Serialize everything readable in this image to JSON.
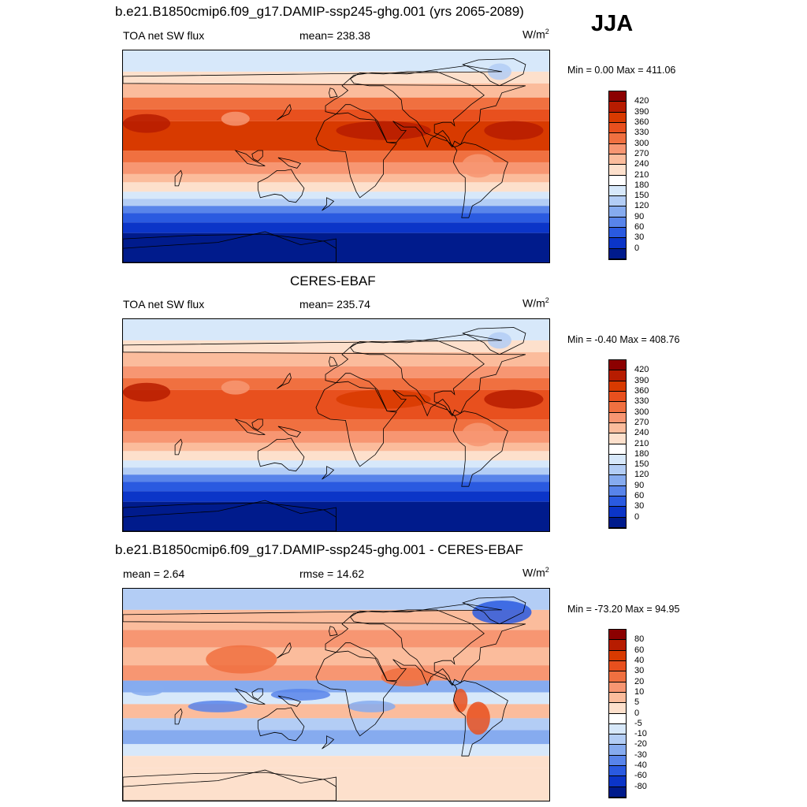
{
  "season": "JJA",
  "panels": [
    {
      "id": "model",
      "title": "b.e21.B1850cmip6.f09_g17.DAMIP-ssp245-ghg.001 (yrs 2065-2089)",
      "left_label": "TOA net SW flux",
      "center_label": "mean= 238.38",
      "units_base": "W/m",
      "units_sup": "2",
      "minmax": "Min =   0.00 Max = 411.06",
      "colorbar_labels": [
        "420",
        "390",
        "360",
        "330",
        "300",
        "270",
        "240",
        "210",
        "180",
        "150",
        "120",
        "90",
        "60",
        "30",
        "0"
      ]
    },
    {
      "id": "obs",
      "title": "CERES-EBAF",
      "left_label": "TOA net SW flux",
      "center_label": "mean= 235.74",
      "units_base": "W/m",
      "units_sup": "2",
      "minmax": "Min =  -0.40 Max = 408.76",
      "colorbar_labels": [
        "420",
        "390",
        "360",
        "330",
        "300",
        "270",
        "240",
        "210",
        "180",
        "150",
        "120",
        "90",
        "60",
        "30",
        "0"
      ]
    },
    {
      "id": "diff",
      "title": "b.e21.B1850cmip6.f09_g17.DAMIP-ssp245-ghg.001 - CERES-EBAF",
      "left_label": "mean =   2.64",
      "center_label": "rmse =  14.62",
      "units_base": "W/m",
      "units_sup": "2",
      "minmax": "Min = -73.20 Max =  94.95",
      "colorbar_labels": [
        "80",
        "60",
        "40",
        "30",
        "20",
        "10",
        "5",
        "0",
        "-5",
        "-10",
        "-20",
        "-30",
        "-40",
        "-60",
        "-80"
      ]
    }
  ],
  "colors": {
    "abs_scale": [
      "#8b0000",
      "#b71c00",
      "#d83a00",
      "#e8501e",
      "#f07040",
      "#f79672",
      "#fbbc9c",
      "#fde0cc",
      "#ffffff",
      "#d7e8fa",
      "#b3cdf5",
      "#86abef",
      "#5884ea",
      "#2a5ae0",
      "#0b35c8",
      "#001b8c"
    ],
    "diff_scale": [
      "#8b0000",
      "#b71c00",
      "#d83a00",
      "#e8501e",
      "#f07040",
      "#f79672",
      "#fbbc9c",
      "#fde0cc",
      "#ffffff",
      "#d7e8fa",
      "#b3cdf5",
      "#86abef",
      "#5884ea",
      "#2a5ae0",
      "#0b35c8",
      "#001b8c"
    ]
  }
}
